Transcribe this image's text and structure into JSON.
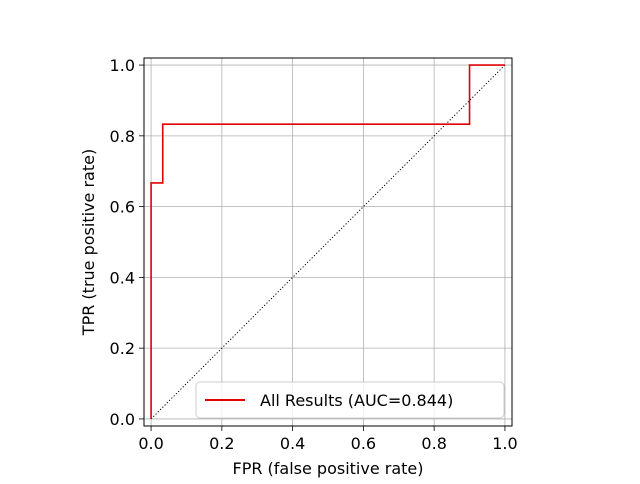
{
  "chart_data": {
    "type": "line",
    "title": "",
    "xlabel": "FPR (false positive rate)",
    "ylabel": "TPR (true positive rate)",
    "xlim": [
      -0.02,
      1.02
    ],
    "ylim": [
      -0.02,
      1.02
    ],
    "xticks": [
      0.0,
      0.2,
      0.4,
      0.6,
      0.8,
      1.0
    ],
    "yticks": [
      0.0,
      0.2,
      0.4,
      0.6,
      0.8,
      1.0
    ],
    "xtick_labels": [
      "0.0",
      "0.2",
      "0.4",
      "0.6",
      "0.8",
      "1.0"
    ],
    "ytick_labels": [
      "0.0",
      "0.2",
      "0.4",
      "0.6",
      "0.8",
      "1.0"
    ],
    "grid": true,
    "legend_position": "lower-right",
    "series": [
      {
        "name": "All Results (AUC=0.844)",
        "color": "#e00000",
        "style": "solid",
        "x": [
          0.0,
          0.0,
          0.0,
          0.033,
          0.033,
          0.9,
          0.9,
          1.0
        ],
        "y": [
          0.0,
          0.667,
          0.667,
          0.667,
          0.833,
          0.833,
          1.0,
          1.0
        ]
      },
      {
        "color": "#000000",
        "style": "dotted",
        "x": [
          0.0,
          1.0
        ],
        "y": [
          0.0,
          1.0
        ]
      }
    ]
  }
}
